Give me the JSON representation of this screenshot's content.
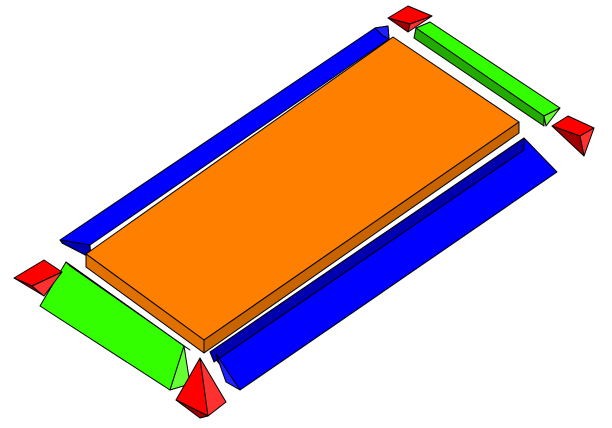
{
  "scene": {
    "description_visible_text": "",
    "colors": {
      "slab": "#ff8000",
      "slab_dark": "#c86400",
      "slab_side": "#e07000",
      "beam_long": "#0000ff",
      "beam_long_dark": "#0000b0",
      "beam_long_light": "#2020ff",
      "beam_short": "#33ff00",
      "beam_short_dark": "#22aa00",
      "beam_short_light": "#66ff33",
      "support": "#ff0000",
      "support_dark": "#a00000",
      "support_light": "#ff3030",
      "background": "#ffffff"
    },
    "objects": [
      {
        "name": "central-slab",
        "type": "box",
        "color": "orange"
      },
      {
        "name": "beam-back-long",
        "type": "triangular-prism",
        "color": "blue"
      },
      {
        "name": "beam-front-long",
        "type": "triangular-prism",
        "color": "blue"
      },
      {
        "name": "beam-right-short",
        "type": "triangular-prism",
        "color": "green"
      },
      {
        "name": "beam-left-short",
        "type": "triangular-prism",
        "color": "green"
      },
      {
        "name": "support-top",
        "type": "pyramid",
        "color": "red"
      },
      {
        "name": "support-right",
        "type": "pyramid",
        "color": "red"
      },
      {
        "name": "support-left",
        "type": "pyramid",
        "color": "red"
      },
      {
        "name": "support-bottom",
        "type": "pyramid",
        "color": "red"
      }
    ]
  }
}
